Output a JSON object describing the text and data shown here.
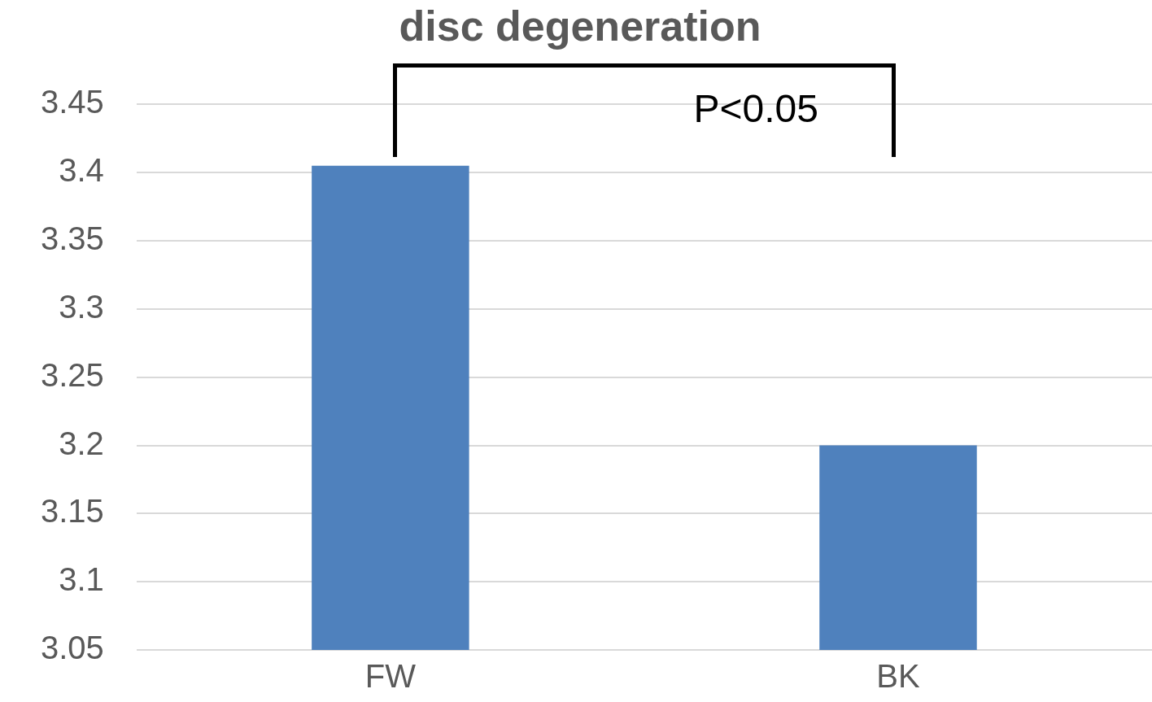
{
  "chart_data": {
    "type": "bar",
    "title": "disc degeneration",
    "categories": [
      "FW",
      "BK"
    ],
    "values": [
      3.405,
      3.2
    ],
    "color": "#4f81bd",
    "ylim": [
      3.05,
      3.45
    ],
    "yticks": [
      3.05,
      3.1,
      3.15,
      3.2,
      3.25,
      3.3,
      3.35,
      3.4,
      3.45
    ],
    "grid": "y",
    "legend": false,
    "annotations": [
      "P<0.05"
    ]
  }
}
